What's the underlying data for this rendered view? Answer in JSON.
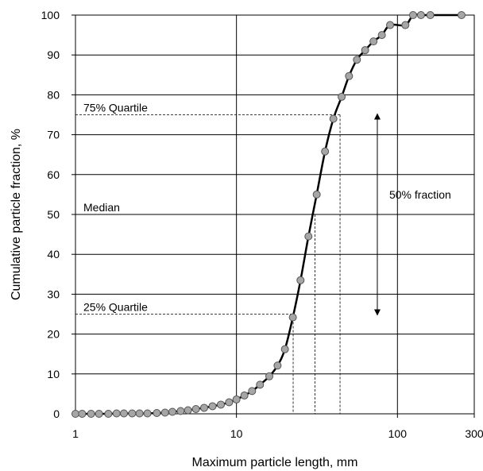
{
  "chart_data": {
    "type": "scatter",
    "xlabel": "Maximum particle length, mm",
    "ylabel": "Cumulative particle fraction, %",
    "x_scale": "log",
    "xlim": [
      1,
      300
    ],
    "ylim": [
      0,
      100
    ],
    "x_ticks": [
      1,
      10,
      100,
      300
    ],
    "x_tick_labels": [
      "1",
      "10",
      "100",
      "300"
    ],
    "y_ticks": [
      0,
      10,
      20,
      30,
      40,
      50,
      60,
      70,
      80,
      90,
      100
    ],
    "y_tick_labels": [
      "0",
      "10",
      "20",
      "30",
      "40",
      "50",
      "60",
      "70",
      "80",
      "90",
      "100"
    ],
    "x_gridlines": [
      1,
      10,
      100
    ],
    "y_gridlines": [
      10,
      20,
      30,
      40,
      50,
      60,
      70,
      80,
      90
    ],
    "grid": true,
    "marker_color": "#a6a6a6",
    "line_color": "#000000",
    "series": [
      {
        "points": [
          [
            1.0,
            0.0
          ],
          [
            1.1,
            0.0
          ],
          [
            1.25,
            0.0
          ],
          [
            1.4,
            0.0
          ],
          [
            1.6,
            0.0
          ],
          [
            1.8,
            0.1
          ],
          [
            2.0,
            0.1
          ],
          [
            2.25,
            0.1
          ],
          [
            2.5,
            0.1
          ],
          [
            2.8,
            0.1
          ],
          [
            3.2,
            0.2
          ],
          [
            3.6,
            0.3
          ],
          [
            4.0,
            0.5
          ],
          [
            4.5,
            0.7
          ],
          [
            5.0,
            0.9
          ],
          [
            5.6,
            1.2
          ],
          [
            6.3,
            1.5
          ],
          [
            7.1,
            1.9
          ],
          [
            8.0,
            2.3
          ],
          [
            9.0,
            2.9
          ],
          [
            10.0,
            3.6
          ],
          [
            11.2,
            4.6
          ],
          [
            12.5,
            5.7
          ],
          [
            14.0,
            7.3
          ],
          [
            16.0,
            9.4
          ],
          [
            18.0,
            12.1
          ],
          [
            20.0,
            16.2
          ],
          [
            22.4,
            24.2
          ],
          [
            25.0,
            33.5
          ],
          [
            28.0,
            44.5
          ],
          [
            31.5,
            55.0
          ],
          [
            35.5,
            65.8
          ],
          [
            40.0,
            74.0
          ],
          [
            45.0,
            79.5
          ],
          [
            50.0,
            84.7
          ],
          [
            56.0,
            88.8
          ],
          [
            63.0,
            91.2
          ],
          [
            71.0,
            93.4
          ],
          [
            80.0,
            95.0
          ],
          [
            90.0,
            97.5
          ],
          [
            112.0,
            97.5
          ],
          [
            125.0,
            100.0
          ],
          [
            140.0,
            100.0
          ],
          [
            160.0,
            100.0
          ],
          [
            250.0,
            100.0
          ]
        ]
      }
    ],
    "annotations": [
      {
        "label": "75% Quartile",
        "y": 75,
        "x_end": 44.0
      },
      {
        "label": "Median",
        "y": 50,
        "x_end": 30.7
      },
      {
        "label": "25% Quartile",
        "y": 25,
        "x_end": 22.5
      }
    ],
    "fraction_arrow": {
      "label": "50% fraction",
      "x": 75,
      "y_top": 75,
      "y_bottom": 25
    }
  }
}
